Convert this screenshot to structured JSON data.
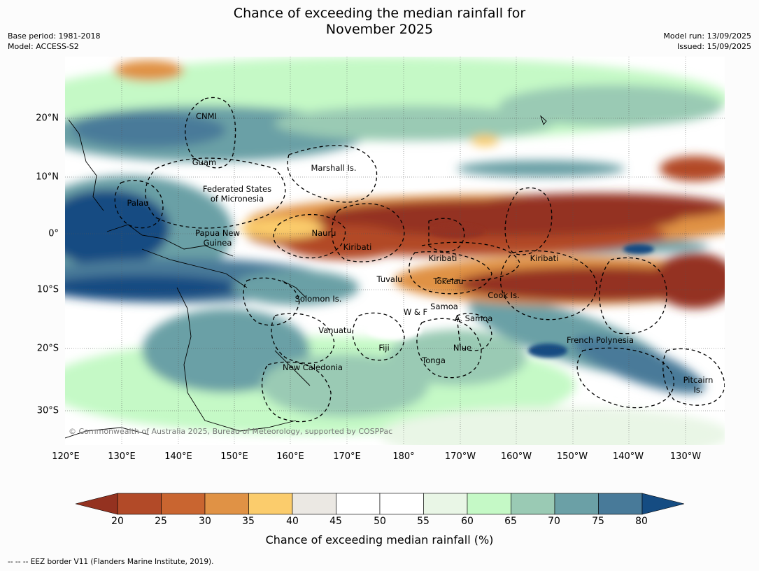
{
  "title_line1": "Chance of exceeding the median rainfall for",
  "title_line2": "November 2025",
  "meta_left": {
    "line1": "Base period: 1981-2018",
    "line2": "Model: ACCESS-S2"
  },
  "meta_right": {
    "line1": "Model run: 13/09/2025",
    "line2": "Issued: 15/09/2025"
  },
  "region_labels": [
    {
      "text": "CNMI"
    },
    {
      "text": "Guam"
    },
    {
      "text": "Marshall Is."
    },
    {
      "text": "Federated States\nof Micronesia"
    },
    {
      "text": "Palau"
    },
    {
      "text": "Papua New\nGuinea"
    },
    {
      "text": "Nauru"
    },
    {
      "text": "Kiribati"
    },
    {
      "text": "Kiribati"
    },
    {
      "text": "Kiribati"
    },
    {
      "text": "Tuvalu"
    },
    {
      "text": "Tokelau"
    },
    {
      "text": "Cook Is."
    },
    {
      "text": "Solomon Is."
    },
    {
      "text": "W & F"
    },
    {
      "text": "Samoa"
    },
    {
      "text": "A. Samoa"
    },
    {
      "text": "Vanuatu"
    },
    {
      "text": "Fiji"
    },
    {
      "text": "Niue"
    },
    {
      "text": "Tonga"
    },
    {
      "text": "French Polynesia"
    },
    {
      "text": "New Caledonia"
    },
    {
      "text": "Pitcairn\nIs."
    }
  ],
  "copyright": "© Commonwealth of Australia 2025, Bureau of Meteorology, supported by COSPPac",
  "lat_labels": [
    "20°N",
    "10°N",
    "0°",
    "10°S",
    "20°S",
    "30°S"
  ],
  "lon_labels": [
    "120°E",
    "130°E",
    "140°E",
    "150°E",
    "160°E",
    "170°E",
    "180°",
    "170°W",
    "160°W",
    "150°W",
    "140°W",
    "130°W"
  ],
  "colorbar": {
    "ticks": [
      "20",
      "25",
      "30",
      "35",
      "40",
      "45",
      "50",
      "55",
      "60",
      "65",
      "70",
      "75",
      "80"
    ],
    "colors": [
      "#943220",
      "#b24a28",
      "#c96530",
      "#e09245",
      "#fbcc6c",
      "#ebe8e3",
      "#ffffff",
      "#ffffff",
      "#e9f6e6",
      "#c5f9c6",
      "#9acab4",
      "#6ba0a6",
      "#487a99",
      "#154c82"
    ],
    "title": "Chance of exceeding median rainfall (%)"
  },
  "footer": "--  --  -- EEZ border V11 (Flanders Marine Institute, 2019)."
}
